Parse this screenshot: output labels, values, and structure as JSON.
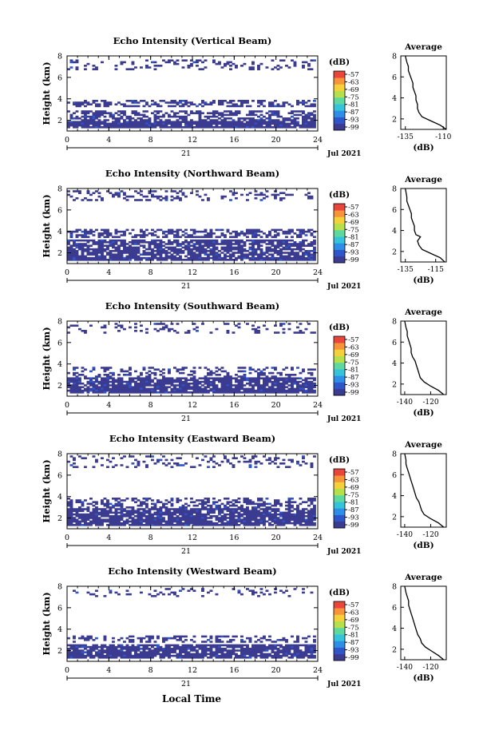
{
  "figure": {
    "xlabel": "Local Time",
    "date_label": "Jul 2021",
    "day_label": "21",
    "unit_label": "(dB)",
    "average_title": "Average",
    "ylabel": "Height (km)",
    "colorbar_ticks": [
      "-57",
      "-63",
      "-69",
      "-75",
      "-81",
      "-87",
      "-93",
      "-99"
    ],
    "colormap": [
      "#3b3b91",
      "#2f56c8",
      "#2c8ee6",
      "#35c3d9",
      "#5fd89e",
      "#b5e04b",
      "#f4d13a",
      "#f7943a",
      "#e9453c"
    ]
  },
  "chart_data": [
    {
      "type": "heatmap",
      "title": "Echo Intensity (Vertical Beam)",
      "ylabel": "Height (km)",
      "xlim": [
        0,
        24
      ],
      "ylim": [
        1,
        8
      ],
      "x_ticks": [
        0,
        4,
        8,
        12,
        16,
        20,
        24
      ],
      "y_ticks": [
        2,
        4,
        6,
        8
      ],
      "bands": [
        [
          1.6,
          2.9,
          0.55
        ],
        [
          3.1,
          3.9,
          0.48
        ],
        [
          6.6,
          7.6,
          0.2
        ]
      ],
      "colorbar": {
        "ticks": [
          "-57",
          "-63",
          "-69",
          "-75",
          "-81",
          "-87",
          "-93",
          "-99"
        ]
      },
      "average": {
        "title": "Average",
        "xlabel": "(dB)",
        "x_ticks": [
          -135,
          -110
        ],
        "xlim": [
          -138,
          -108
        ],
        "y_ticks": [
          2,
          4,
          6,
          8
        ],
        "ylim": [
          1,
          8
        ],
        "profile": [
          [
            -108,
            1.0
          ],
          [
            -112,
            1.4
          ],
          [
            -118,
            1.8
          ],
          [
            -124,
            2.2
          ],
          [
            -126,
            2.6
          ],
          [
            -127,
            3.0
          ],
          [
            -127,
            3.4
          ],
          [
            -128,
            3.8
          ],
          [
            -128,
            4.2
          ],
          [
            -129,
            4.6
          ],
          [
            -130,
            5.0
          ],
          [
            -130,
            5.4
          ],
          [
            -131,
            5.8
          ],
          [
            -132,
            6.2
          ],
          [
            -133,
            6.6
          ],
          [
            -133,
            7.0
          ],
          [
            -134,
            7.4
          ],
          [
            -135,
            8.0
          ]
        ]
      }
    },
    {
      "type": "heatmap",
      "title": "Echo Intensity (Northward Beam)",
      "ylabel": "Height (km)",
      "xlim": [
        0,
        24
      ],
      "ylim": [
        1,
        8
      ],
      "x_ticks": [
        0,
        4,
        8,
        12,
        16,
        20,
        24
      ],
      "y_ticks": [
        2,
        4,
        6,
        8
      ],
      "bands": [
        [
          1.3,
          3.2,
          0.75
        ],
        [
          3.4,
          4.2,
          0.5
        ],
        [
          6.8,
          7.9,
          0.25
        ]
      ],
      "colorbar": {
        "ticks": [
          "-57",
          "-63",
          "-69",
          "-75",
          "-81",
          "-87",
          "-93",
          "-99"
        ]
      },
      "average": {
        "title": "Average",
        "xlabel": "(dB)",
        "x_ticks": [
          -135,
          -115
        ],
        "xlim": [
          -138,
          -108
        ],
        "y_ticks": [
          2,
          4,
          6,
          8
        ],
        "ylim": [
          1,
          8
        ],
        "profile": [
          [
            -109,
            1.0
          ],
          [
            -112,
            1.4
          ],
          [
            -118,
            1.8
          ],
          [
            -124,
            2.2
          ],
          [
            -126,
            2.6
          ],
          [
            -127,
            3.0
          ],
          [
            -125,
            3.4
          ],
          [
            -128,
            3.6
          ],
          [
            -129,
            4.0
          ],
          [
            -129,
            4.4
          ],
          [
            -130,
            4.8
          ],
          [
            -131,
            5.2
          ],
          [
            -131,
            5.6
          ],
          [
            -132,
            6.0
          ],
          [
            -133,
            6.4
          ],
          [
            -134,
            6.8
          ],
          [
            -134,
            7.2
          ],
          [
            -135,
            8.0
          ]
        ]
      }
    },
    {
      "type": "heatmap",
      "title": "Echo Intensity (Southward Beam)",
      "ylabel": "Height (km)",
      "xlim": [
        0,
        24
      ],
      "ylim": [
        1,
        8
      ],
      "x_ticks": [
        0,
        4,
        8,
        12,
        16,
        20,
        24
      ],
      "y_ticks": [
        2,
        4,
        6,
        8
      ],
      "bands": [
        [
          1.3,
          2.6,
          0.8
        ],
        [
          2.7,
          3.6,
          0.3
        ],
        [
          6.9,
          7.9,
          0.18
        ]
      ],
      "colorbar": {
        "ticks": [
          "-57",
          "-63",
          "-69",
          "-75",
          "-81",
          "-87",
          "-93",
          "-99"
        ]
      },
      "average": {
        "title": "Average",
        "xlabel": "(dB)",
        "x_ticks": [
          -140,
          -120
        ],
        "xlim": [
          -143,
          -108
        ],
        "y_ticks": [
          2,
          4,
          6,
          8
        ],
        "ylim": [
          1,
          8
        ],
        "profile": [
          [
            -110,
            1.0
          ],
          [
            -114,
            1.4
          ],
          [
            -120,
            1.8
          ],
          [
            -125,
            2.2
          ],
          [
            -128,
            2.6
          ],
          [
            -129,
            3.0
          ],
          [
            -130,
            3.4
          ],
          [
            -131,
            3.8
          ],
          [
            -132,
            4.2
          ],
          [
            -134,
            4.6
          ],
          [
            -135,
            5.0
          ],
          [
            -135,
            5.4
          ],
          [
            -136,
            5.8
          ],
          [
            -137,
            6.2
          ],
          [
            -138,
            6.6
          ],
          [
            -138,
            7.0
          ],
          [
            -139,
            7.4
          ],
          [
            -140,
            8.0
          ]
        ]
      }
    },
    {
      "type": "heatmap",
      "title": "Echo Intensity (Eastward Beam)",
      "ylabel": "Height (km)",
      "xlim": [
        0,
        24
      ],
      "ylim": [
        1,
        8
      ],
      "x_ticks": [
        0,
        4,
        8,
        12,
        16,
        20,
        24
      ],
      "y_ticks": [
        2,
        4,
        6,
        8
      ],
      "bands": [
        [
          1.4,
          2.8,
          0.8
        ],
        [
          2.9,
          3.9,
          0.45
        ],
        [
          6.7,
          7.9,
          0.22
        ]
      ],
      "colorbar": {
        "ticks": [
          "-57",
          "-63",
          "-69",
          "-75",
          "-81",
          "-87",
          "-93",
          "-99"
        ]
      },
      "average": {
        "title": "Average",
        "xlabel": "(dB)",
        "x_ticks": [
          -140,
          -120
        ],
        "xlim": [
          -143,
          -108
        ],
        "y_ticks": [
          2,
          4,
          6,
          8
        ],
        "ylim": [
          1,
          8
        ],
        "profile": [
          [
            -110,
            1.0
          ],
          [
            -114,
            1.4
          ],
          [
            -120,
            1.8
          ],
          [
            -125,
            2.2
          ],
          [
            -127,
            2.6
          ],
          [
            -128,
            3.0
          ],
          [
            -129,
            3.4
          ],
          [
            -131,
            3.8
          ],
          [
            -132,
            4.2
          ],
          [
            -133,
            4.6
          ],
          [
            -134,
            5.0
          ],
          [
            -135,
            5.4
          ],
          [
            -136,
            5.8
          ],
          [
            -137,
            6.2
          ],
          [
            -138,
            6.6
          ],
          [
            -139,
            7.0
          ],
          [
            -139,
            7.4
          ],
          [
            -140,
            8.0
          ]
        ]
      }
    },
    {
      "type": "heatmap",
      "title": "Echo Intensity (Westward Beam)",
      "ylabel": "Height (km)",
      "xlim": [
        0,
        24
      ],
      "ylim": [
        1,
        8
      ],
      "x_ticks": [
        0,
        4,
        8,
        12,
        16,
        20,
        24
      ],
      "y_ticks": [
        2,
        4,
        6,
        8
      ],
      "bands": [
        [
          1.3,
          2.5,
          0.82
        ],
        [
          2.6,
          3.4,
          0.35
        ],
        [
          7.0,
          7.9,
          0.15
        ]
      ],
      "colorbar": {
        "ticks": [
          "-57",
          "-63",
          "-69",
          "-75",
          "-81",
          "-87",
          "-93",
          "-99"
        ]
      },
      "average": {
        "title": "Average",
        "xlabel": "(dB)",
        "x_ticks": [
          -140,
          -120
        ],
        "xlim": [
          -143,
          -108
        ],
        "y_ticks": [
          2,
          4,
          6,
          8
        ],
        "ylim": [
          1,
          8
        ],
        "profile": [
          [
            -110,
            1.0
          ],
          [
            -114,
            1.4
          ],
          [
            -119,
            1.8
          ],
          [
            -124,
            2.2
          ],
          [
            -127,
            2.6
          ],
          [
            -128,
            3.0
          ],
          [
            -130,
            3.4
          ],
          [
            -131,
            3.8
          ],
          [
            -132,
            4.2
          ],
          [
            -133,
            4.6
          ],
          [
            -134,
            5.0
          ],
          [
            -135,
            5.4
          ],
          [
            -136,
            5.8
          ],
          [
            -137,
            6.2
          ],
          [
            -137,
            6.6
          ],
          [
            -138,
            7.0
          ],
          [
            -139,
            7.4
          ],
          [
            -140,
            8.0
          ]
        ]
      }
    }
  ]
}
